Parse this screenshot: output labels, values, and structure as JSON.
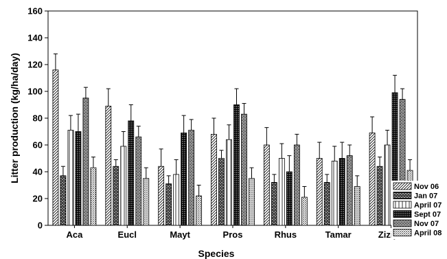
{
  "chart_data": {
    "type": "bar",
    "xlabel": "Species",
    "ylabel": "Litter production (kg/ha/day)",
    "ylim": [
      0,
      160
    ],
    "yticks": [
      0,
      20,
      40,
      60,
      80,
      100,
      120,
      140,
      160
    ],
    "grid": false,
    "legend_position": "right",
    "categories": [
      "Aca",
      "Eucl",
      "Mayt",
      "Pros",
      "Rhus",
      "Tamar",
      "Ziziph"
    ],
    "series": [
      {
        "name": "Nov 06",
        "pattern": "diag-fine",
        "values": [
          116,
          89,
          44,
          68,
          60,
          50,
          69
        ],
        "errors": [
          12,
          13,
          13,
          12,
          13,
          12,
          12
        ]
      },
      {
        "name": "Jan 07",
        "pattern": "brick-dense",
        "values": [
          37,
          44,
          31,
          50,
          32,
          32,
          44
        ],
        "errors": [
          7,
          5,
          6,
          6,
          6,
          6,
          7
        ]
      },
      {
        "name": "April 07",
        "pattern": "vert-lines",
        "values": [
          71,
          59,
          38,
          64,
          50,
          48,
          60
        ],
        "errors": [
          11,
          11,
          11,
          11,
          11,
          11,
          11
        ]
      },
      {
        "name": "Sept 07",
        "pattern": "cross-dense",
        "values": [
          70,
          78,
          69,
          90,
          40,
          50,
          99
        ],
        "errors": [
          13,
          12,
          13,
          12,
          12,
          12,
          13
        ]
      },
      {
        "name": "Nov 07",
        "pattern": "brick-dark",
        "values": [
          95,
          66,
          71,
          83,
          60,
          52,
          94
        ],
        "errors": [
          8,
          8,
          8,
          8,
          8,
          8,
          8
        ]
      },
      {
        "name": "April 08",
        "pattern": "dots-fine",
        "values": [
          43,
          35,
          22,
          35,
          21,
          29,
          41
        ],
        "errors": [
          8,
          8,
          8,
          8,
          8,
          8,
          8
        ]
      }
    ]
  }
}
